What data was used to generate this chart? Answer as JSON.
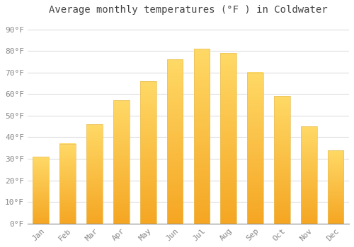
{
  "title": "Average monthly temperatures (°F ) in Coldwater",
  "months": [
    "Jan",
    "Feb",
    "Mar",
    "Apr",
    "May",
    "Jun",
    "Jul",
    "Aug",
    "Sep",
    "Oct",
    "Nov",
    "Dec"
  ],
  "values": [
    31,
    37,
    46,
    57,
    66,
    76,
    81,
    79,
    70,
    59,
    45,
    34
  ],
  "bar_color_bottom": "#F5A623",
  "bar_color_top": "#FFD966",
  "bar_edge_color": "#E8C060",
  "background_color": "#FFFFFF",
  "grid_color": "#DDDDDD",
  "tick_label_color": "#888888",
  "title_color": "#444444",
  "ylim": [
    0,
    95
  ],
  "yticks": [
    0,
    10,
    20,
    30,
    40,
    50,
    60,
    70,
    80,
    90
  ],
  "ytick_labels": [
    "0°F",
    "10°F",
    "20°F",
    "30°F",
    "40°F",
    "50°F",
    "60°F",
    "70°F",
    "80°F",
    "90°F"
  ],
  "title_fontsize": 10,
  "tick_fontsize": 8,
  "figsize": [
    5.0,
    3.5
  ],
  "dpi": 100,
  "bar_width": 0.6
}
